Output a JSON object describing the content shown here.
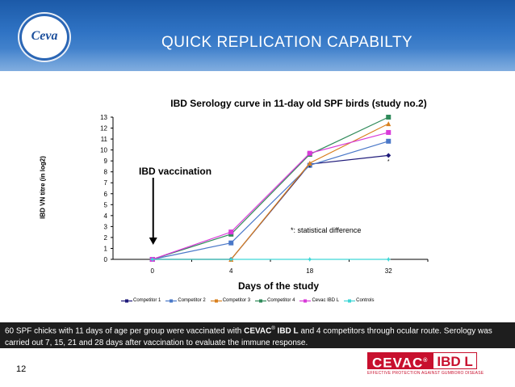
{
  "header": {
    "logo_text": "Ceva",
    "title": "QUICK REPLICATION CAPABILTY"
  },
  "chart_data": {
    "type": "line",
    "title": "IBD Serology curve in 11-day old SPF birds (study no.2)",
    "xlabel": "Days of the study",
    "ylabel": "IBD VN titre (in log2)",
    "categories": [
      "0",
      "4",
      "18",
      "32"
    ],
    "ylim": [
      0,
      13
    ],
    "yticks": [
      "0",
      "1",
      "2",
      "3",
      "4",
      "5",
      "6",
      "7",
      "8",
      "9",
      "10",
      "11",
      "12",
      "13"
    ],
    "series": [
      {
        "name": "Competitor 1",
        "color": "#1f1a7a",
        "marker": "diamond",
        "values": [
          0,
          0,
          8.7,
          9.5
        ]
      },
      {
        "name": "Competitor 2",
        "color": "#4a78c8",
        "marker": "square",
        "values": [
          0,
          1.5,
          8.6,
          10.8
        ]
      },
      {
        "name": "Competitor 3",
        "color": "#d9801f",
        "marker": "triangle",
        "values": [
          0,
          0,
          8.8,
          12.4
        ]
      },
      {
        "name": "Competitor 4",
        "color": "#2f8a5a",
        "marker": "square",
        "values": [
          0,
          2.3,
          9.6,
          13.0
        ]
      },
      {
        "name": "Cevac IBD L",
        "color": "#d93ad9",
        "marker": "square",
        "values": [
          0,
          2.5,
          9.7,
          11.6
        ]
      },
      {
        "name": "Controls",
        "color": "#3ed6d6",
        "marker": "star",
        "values": [
          0,
          0,
          0,
          0
        ]
      }
    ],
    "annotations": {
      "vaccination": "IBD vaccination",
      "significance": "*: statistical difference",
      "marks": [
        "*",
        "*"
      ]
    },
    "grid": false,
    "legend_position": "bottom"
  },
  "footer": {
    "text_1": "60 SPF chicks with 11 days of age per group were vaccinated with ",
    "brand": "CEVAC",
    "reg": "®",
    "product": " IBD L",
    "text_2": " and 4 competitors through ocular route. Serology was carried out 7, 15, 21 and 28 days after vaccination to evaluate the immune response."
  },
  "page_number": "12",
  "product_logo": {
    "left": "CEVAC",
    "reg": "®",
    "right": "IBD L",
    "tagline": "EFFECTIVE PROTECTION AGAINST GUMBORO DISEASE"
  }
}
